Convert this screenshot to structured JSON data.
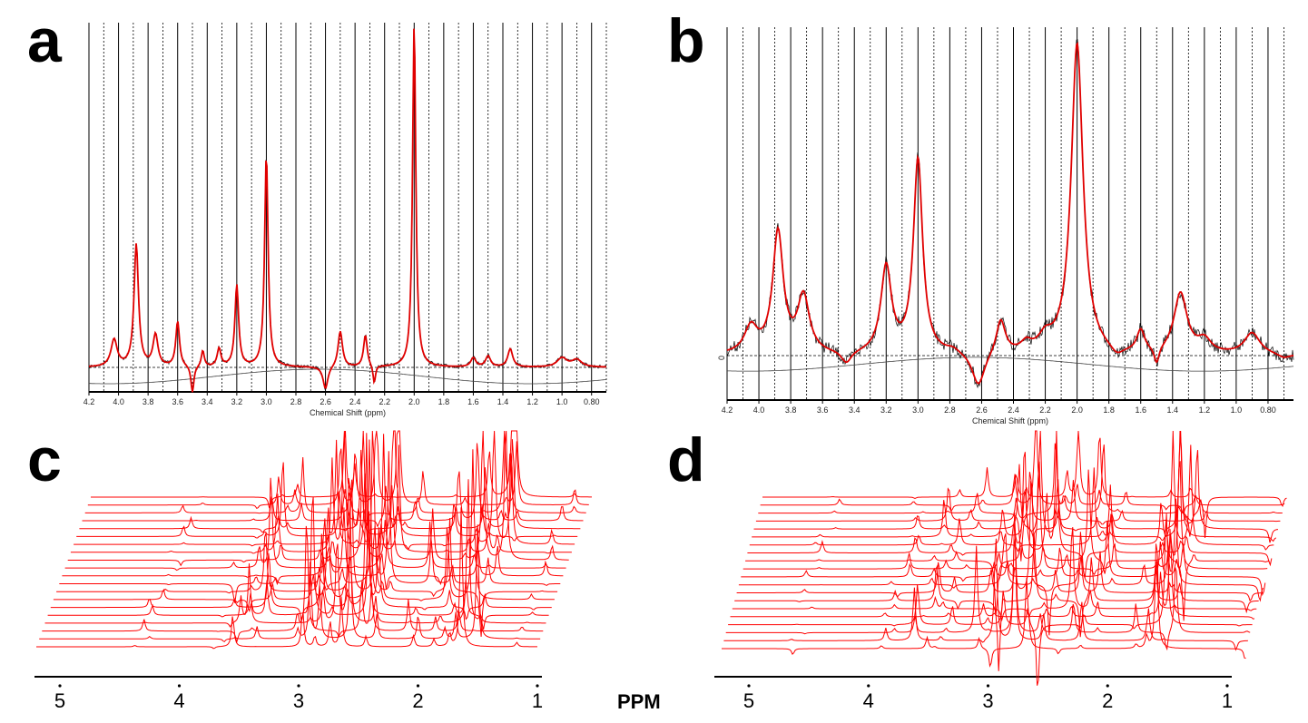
{
  "panels": {
    "a": "a",
    "b": "b",
    "c": "c",
    "d": "d"
  },
  "chart_data": [
    {
      "panel": "a",
      "type": "line",
      "xlabel": "Chemical Shift (ppm)",
      "xlim": [
        4.2,
        0.7
      ],
      "x_reversed": true,
      "xticks": [
        "4.2",
        "4.0",
        "3.8",
        "3.6",
        "3.4",
        "3.2",
        "3.0",
        "2.8",
        "2.6",
        "2.4",
        "2.2",
        "2.0",
        "1.8",
        "1.6",
        "1.4",
        "1.2",
        "1.0",
        "0.80"
      ],
      "grid": "vertical",
      "series": [
        {
          "role": "spectrum",
          "color": "#000000"
        },
        {
          "role": "fit",
          "color": "#e00000"
        },
        {
          "role": "baseline",
          "color": "#444444"
        }
      ],
      "peaks": [
        [
          4.03,
          30,
          0.025
        ],
        [
          3.88,
          135,
          0.018
        ],
        [
          3.75,
          35,
          0.02
        ],
        [
          3.6,
          50,
          0.015
        ],
        [
          3.5,
          -30,
          0.012
        ],
        [
          3.43,
          18,
          0.012
        ],
        [
          3.32,
          20,
          0.015
        ],
        [
          3.2,
          90,
          0.015
        ],
        [
          3.0,
          235,
          0.014
        ],
        [
          2.6,
          -25,
          0.02
        ],
        [
          2.5,
          40,
          0.018
        ],
        [
          2.33,
          35,
          0.015
        ],
        [
          2.27,
          -20,
          0.01
        ],
        [
          2.0,
          380,
          0.013
        ],
        [
          1.6,
          10,
          0.02
        ],
        [
          1.5,
          12,
          0.02
        ],
        [
          1.35,
          20,
          0.02
        ],
        [
          1.0,
          10,
          0.04
        ],
        [
          0.9,
          8,
          0.04
        ]
      ]
    },
    {
      "panel": "b",
      "type": "line",
      "xlabel": "Chemical Shift (ppm)",
      "ylabel": "0",
      "xlim": [
        4.2,
        0.64
      ],
      "x_reversed": true,
      "xticks": [
        "4.2",
        "4.0",
        "3.8",
        "3.6",
        "3.4",
        "3.2",
        "3.0",
        "2.8",
        "2.6",
        "2.4",
        "2.2",
        "2.0",
        "1.8",
        "1.6",
        "1.4",
        "1.2",
        "1.0",
        "0.80"
      ],
      "grid": "vertical",
      "series": [
        {
          "role": "spectrum",
          "color": "#000000"
        },
        {
          "role": "fit",
          "color": "#e00000"
        },
        {
          "role": "baseline",
          "color": "#444444"
        }
      ],
      "peaks": [
        [
          4.05,
          30,
          0.05
        ],
        [
          3.88,
          140,
          0.04
        ],
        [
          3.72,
          65,
          0.045
        ],
        [
          3.45,
          -15,
          0.04
        ],
        [
          3.2,
          100,
          0.04
        ],
        [
          3.0,
          225,
          0.035
        ],
        [
          2.78,
          5,
          0.05
        ],
        [
          2.62,
          -40,
          0.05
        ],
        [
          2.48,
          40,
          0.035
        ],
        [
          2.32,
          10,
          0.04
        ],
        [
          2.2,
          15,
          0.05
        ],
        [
          2.0,
          360,
          0.045
        ],
        [
          1.75,
          -10,
          0.05
        ],
        [
          1.6,
          25,
          0.03
        ],
        [
          1.5,
          -20,
          0.02
        ],
        [
          1.35,
          70,
          0.05
        ],
        [
          1.2,
          15,
          0.05
        ],
        [
          0.9,
          25,
          0.06
        ],
        [
          0.7,
          -5,
          0.05
        ]
      ]
    },
    {
      "panel": "c",
      "type": "line",
      "style": "waterfall",
      "xlabel": "PPM",
      "xticks": [
        "5",
        "4",
        "3",
        "2",
        "1"
      ],
      "xlim": [
        5.2,
        0.95
      ],
      "color": "#ff0000",
      "traces": 20,
      "peaks": [
        [
          3.55,
          40
        ],
        [
          3.4,
          120
        ],
        [
          3.0,
          160
        ],
        [
          2.9,
          200
        ],
        [
          2.75,
          220
        ],
        [
          2.55,
          230
        ],
        [
          2.4,
          200
        ],
        [
          2.05,
          70
        ],
        [
          1.8,
          110
        ],
        [
          1.65,
          220
        ],
        [
          1.55,
          200
        ],
        [
          1.1,
          30
        ],
        [
          4.3,
          15
        ],
        [
          3.7,
          -25
        ]
      ]
    },
    {
      "panel": "d",
      "type": "line",
      "style": "waterfall",
      "xlabel": "",
      "xticks": [
        "5",
        "4",
        "3",
        "2",
        "1"
      ],
      "xlim": [
        5.2,
        0.95
      ],
      "color": "#ff0000",
      "traces": 20,
      "peaks": [
        [
          4.6,
          15
        ],
        [
          3.9,
          25
        ],
        [
          3.6,
          70
        ],
        [
          3.45,
          40
        ],
        [
          3.1,
          200
        ],
        [
          3.0,
          160
        ],
        [
          2.8,
          200
        ],
        [
          2.65,
          180
        ],
        [
          2.4,
          120
        ],
        [
          2.25,
          90
        ],
        [
          1.85,
          60
        ],
        [
          1.7,
          180
        ],
        [
          1.62,
          160
        ],
        [
          1.0,
          -30
        ]
      ]
    }
  ]
}
